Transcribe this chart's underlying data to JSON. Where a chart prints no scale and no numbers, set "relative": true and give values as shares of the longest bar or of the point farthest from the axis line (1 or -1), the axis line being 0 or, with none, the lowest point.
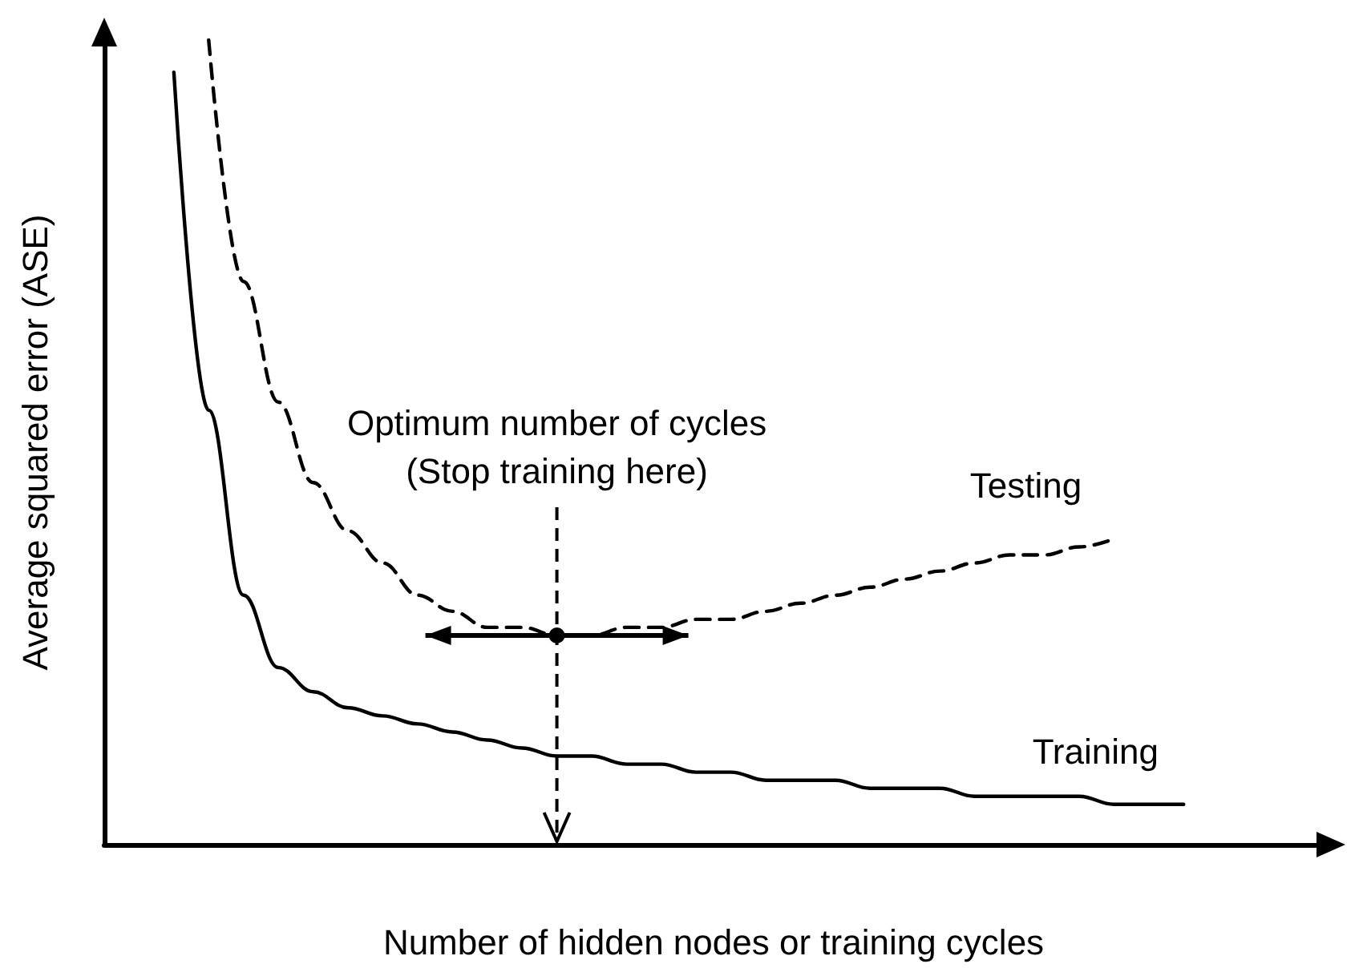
{
  "chart_data": {
    "type": "line",
    "relative": true,
    "xlabel": "Number of hidden nodes or training cycles",
    "ylabel": "Average squared error (ASE)",
    "annotations": [
      "Optimum number of cycles\n(Stop training here)"
    ],
    "grid": false,
    "legend": false,
    "marker": "none",
    "categories": [
      null,
      null,
      null,
      null,
      null,
      null,
      null,
      null,
      null,
      null,
      null,
      null,
      null,
      null,
      null,
      null,
      null,
      null,
      null,
      null,
      null,
      null,
      null,
      null,
      null,
      null,
      null,
      null,
      null,
      null,
      null,
      null,
      null,
      null,
      null,
      null
    ],
    "series": [
      {
        "name": "Testing",
        "color": "#000000",
        "line_style": "dashed",
        "values": [
          null,
          null,
          null,
          1.0,
          0.7,
          0.55,
          0.45,
          0.39,
          0.35,
          0.31,
          0.29,
          0.27,
          0.27,
          0.26,
          0.26,
          0.27,
          0.27,
          0.28,
          0.28,
          0.29,
          0.3,
          0.31,
          0.32,
          0.33,
          0.34,
          0.35,
          0.36,
          0.36,
          0.37,
          0.38,
          null,
          null,
          null,
          null,
          null,
          null
        ]
      },
      {
        "name": "Training",
        "color": "#000000",
        "line_style": "solid",
        "values": [
          null,
          null,
          0.96,
          0.54,
          0.31,
          0.22,
          0.19,
          0.17,
          0.16,
          0.15,
          0.14,
          0.13,
          0.12,
          0.11,
          0.11,
          0.1,
          0.1,
          0.09,
          0.09,
          0.08,
          0.08,
          0.08,
          0.07,
          0.07,
          0.07,
          0.06,
          0.06,
          0.06,
          0.06,
          0.05,
          0.05,
          0.05,
          null,
          null,
          null,
          null
        ]
      }
    ]
  }
}
